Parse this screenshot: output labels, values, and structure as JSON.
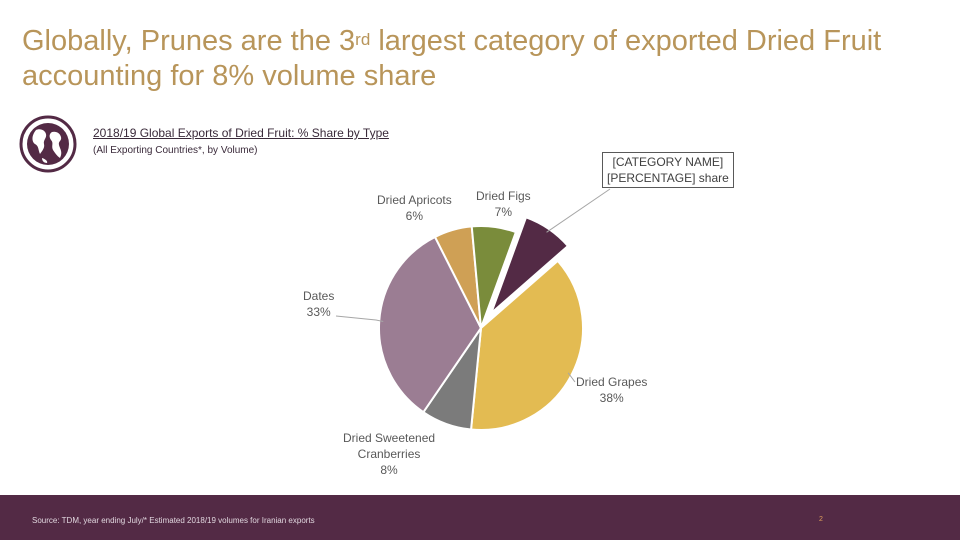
{
  "headline": {
    "part1": "Globally,  Prunes are the 3",
    "superscript": "rd",
    "part2": " largest category of exported Dried Fruit accounting for 8% volume share"
  },
  "chart_data": {
    "type": "pie",
    "title": "2018/19 Global Exports of Dried Fruit: % Share by Type",
    "subtitle": "(All Exporting Countries*, by Volume)",
    "slices": [
      {
        "key": "prunes",
        "name": "[CATEGORY NAME]",
        "value": 8,
        "label_value": "[PERCENTAGE] share",
        "color": "#532a45",
        "exploded": true
      },
      {
        "key": "grapes",
        "name": "Dried Grapes",
        "value": 38,
        "label_value": "38%",
        "color": "#e3bb52"
      },
      {
        "key": "cranberries",
        "name": "Dried Sweetened Cranberries",
        "value": 8,
        "label_value": "8%",
        "color": "#7b7b7b"
      },
      {
        "key": "dates",
        "name": "Dates",
        "value": 33,
        "label_value": "33%",
        "color": "#9b7d93"
      },
      {
        "key": "apricots",
        "name": "Dried Apricots",
        "value": 6,
        "label_value": "6%",
        "color": "#cfa055"
      },
      {
        "key": "figs",
        "name": "Dried Figs",
        "value": 7,
        "label_value": "7%",
        "color": "#7a8c3b"
      }
    ],
    "labels": {
      "prunes": {
        "line1": "[CATEGORY NAME]",
        "line2": "[PERCENTAGE] share"
      },
      "grapes": {
        "line1": "Dried Grapes",
        "line2": "38%"
      },
      "cranberries": {
        "line1": "Dried Sweetened",
        "line2": "Cranberries",
        "line3": "8%"
      },
      "dates": {
        "line1": "Dates",
        "line2": "33%"
      },
      "apricots": {
        "line1": "Dried Apricots",
        "line2": "6%"
      },
      "figs": {
        "line1": "Dried Figs",
        "line2": "7%"
      }
    }
  },
  "footer": {
    "source": "Source: TDM, year ending July/* Estimated 2018/19 volumes for Iranian exports",
    "page_number": "2"
  },
  "colors": {
    "headline": "#b8955a",
    "footer_bg": "#532a45",
    "globe": "#532a45"
  },
  "icons": {
    "globe": "globe-icon"
  }
}
